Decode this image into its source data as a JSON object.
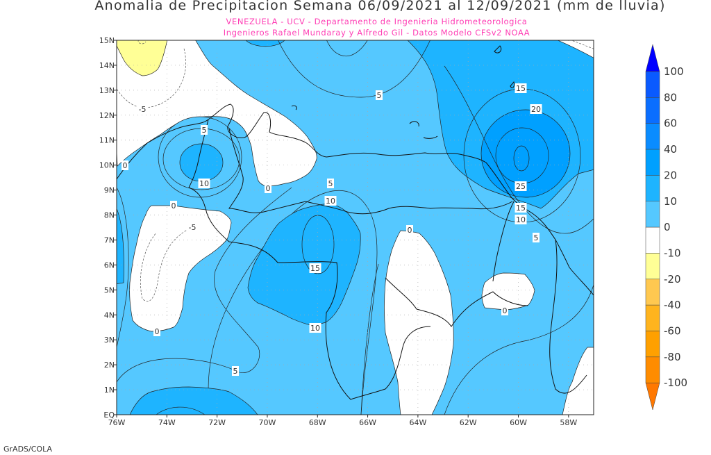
{
  "title": "Anomalia de Precipitacion Semana 06/09/2021 al 12/09/2021 (mm de lluvia)",
  "subtitle_1": "VENEZUELA - UCV - Departamento de Ingenieria Hidrometeorologica",
  "subtitle_2": "Ingenieros Rafael Mundaray y Alfredo Gil - Datos Modelo CFSv2 NOAA",
  "footer": "GrADS/COLA",
  "map": {
    "region": "Venezuela",
    "lon_range": [
      -76,
      -57
    ],
    "lat_range": [
      0,
      15
    ],
    "lon_labels": [
      "76W",
      "74W",
      "72W",
      "70W",
      "68W",
      "66W",
      "64W",
      "62W",
      "60W",
      "58W"
    ],
    "lat_labels": [
      "EQ",
      "1N",
      "2N",
      "3N",
      "4N",
      "5N",
      "6N",
      "7N",
      "8N",
      "9N",
      "10N",
      "11N",
      "12N",
      "13N",
      "14N",
      "15N"
    ],
    "grid": true,
    "contour_labels": [
      "15",
      "20",
      "5",
      "-5",
      "5",
      "0",
      "10",
      "0",
      "5",
      "10",
      "25",
      "15",
      "10",
      "5",
      "0",
      "-5",
      "0",
      "15",
      "0",
      "10",
      "0",
      "5"
    ]
  },
  "colorbar": {
    "labels": [
      "100",
      "80",
      "60",
      "40",
      "20",
      "10",
      "0",
      "-10",
      "-20",
      "-40",
      "-60",
      "-80",
      "-100"
    ],
    "colors": [
      "#0000ff",
      "#0a5aff",
      "#0a6eff",
      "#0a8cff",
      "#00a0ff",
      "#1eb4ff",
      "#55c8ff",
      "#ffffff",
      "#ffff96",
      "#ffc850",
      "#ffb41e",
      "#ffa000",
      "#ff8c00",
      "#ff7800"
    ]
  }
}
